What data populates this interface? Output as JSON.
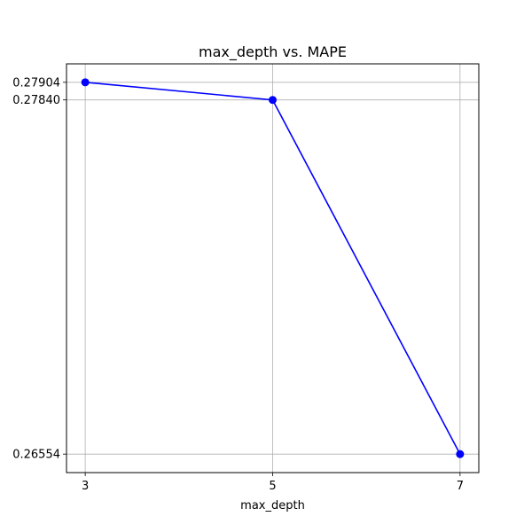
{
  "chart_data": {
    "type": "line",
    "title": "max_depth vs. MAPE",
    "xlabel": "max_depth",
    "ylabel": "",
    "x": [
      3,
      5,
      7
    ],
    "x_tick_labels": [
      "3",
      "5",
      "7"
    ],
    "y_ticks": [
      0.26554,
      0.2784,
      0.27904
    ],
    "y_tick_labels": [
      "0.26554",
      "0.27840",
      "0.27904"
    ],
    "xlim": [
      2.8,
      7.2
    ],
    "ylim": [
      0.26487,
      0.27971
    ],
    "grid": true,
    "series": [
      {
        "values": [
          0.27904,
          0.2784,
          0.26554
        ],
        "color": "#0000ff",
        "marker": "circle"
      }
    ]
  }
}
